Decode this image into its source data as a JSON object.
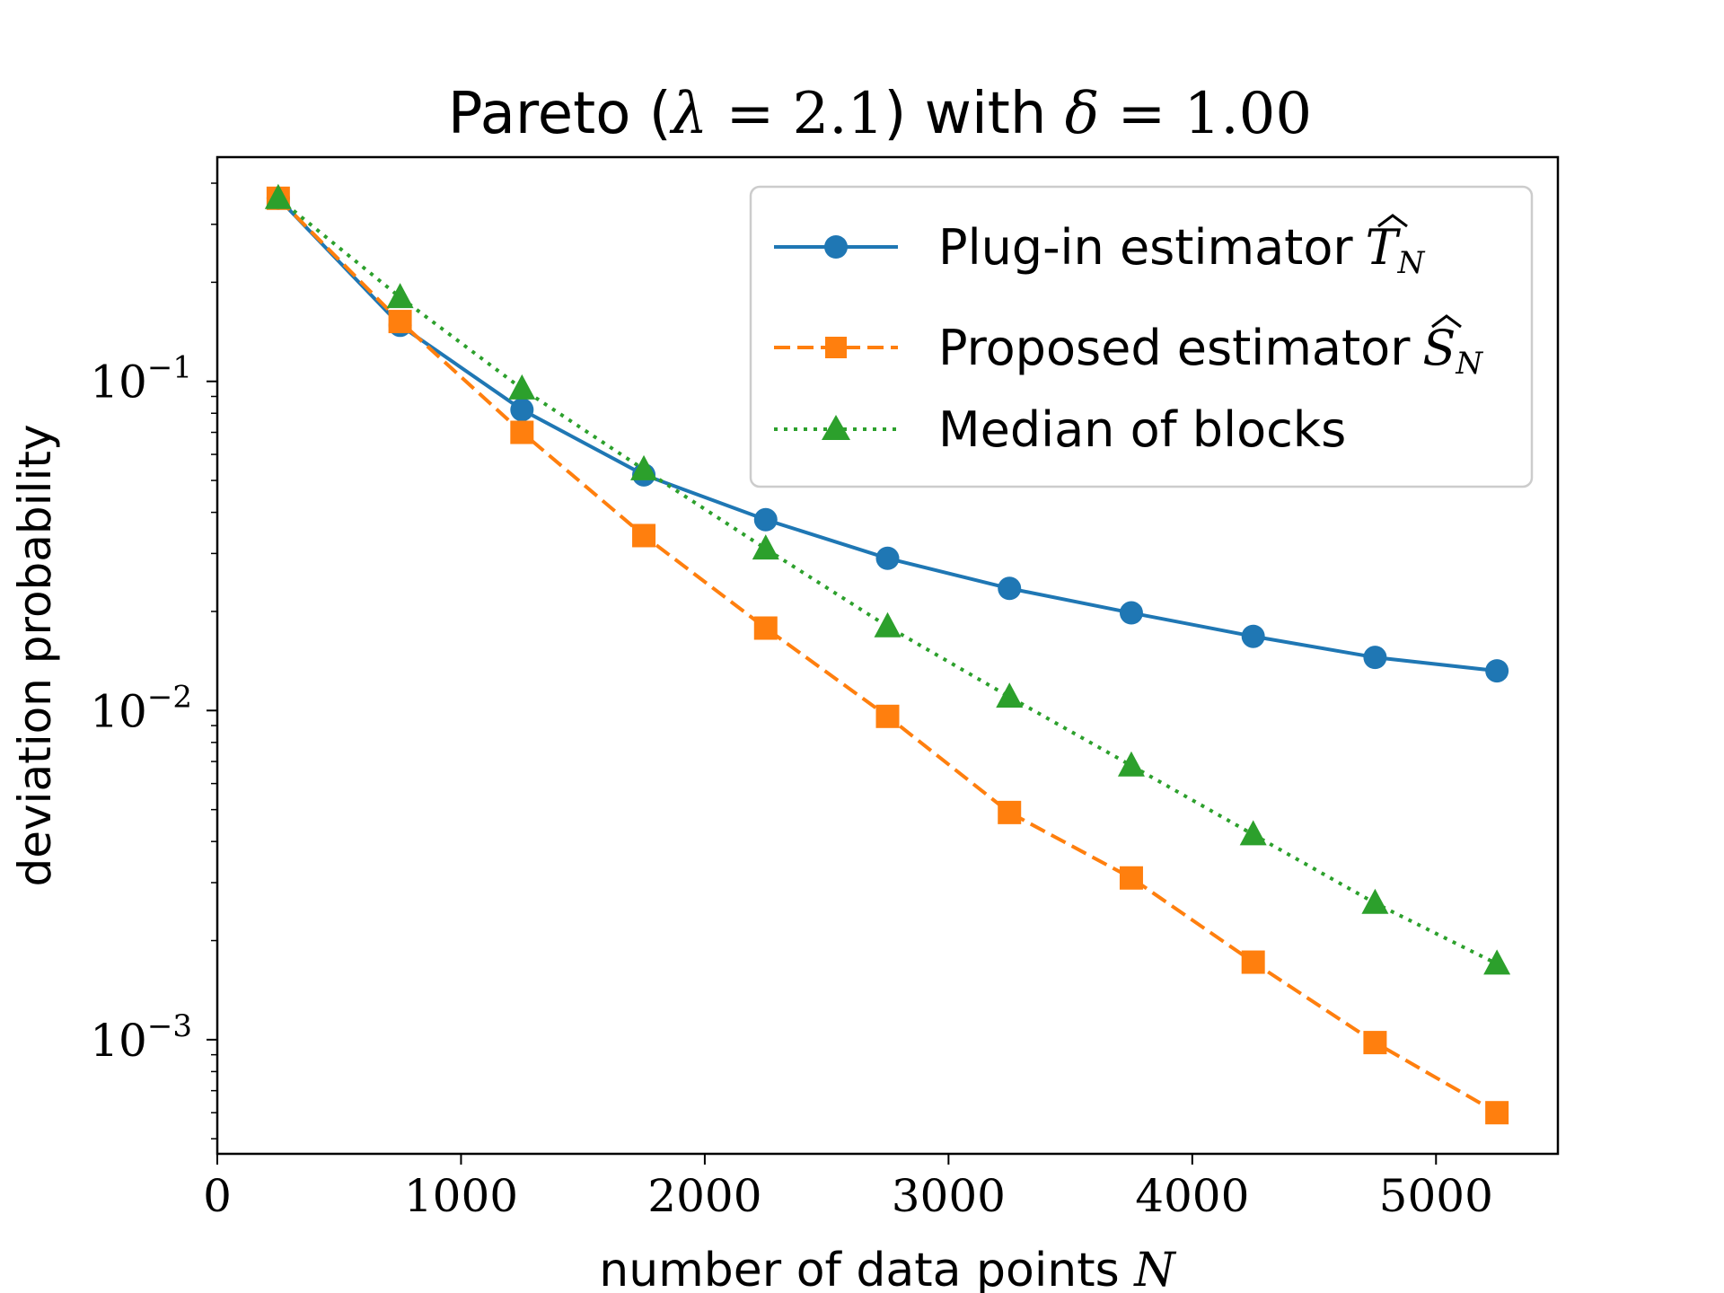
{
  "chart_data": {
    "type": "line",
    "title": {
      "prefix": "Pareto (",
      "lambda_sym": "λ",
      "eq1": " = 2.1",
      "close": ")",
      "mid": " with ",
      "delta_sym": "δ",
      "eq2": " = 1.00"
    },
    "xlabel": {
      "text": "number of data points ",
      "var": "N"
    },
    "ylabel": "deviation probability",
    "xlim": [
      0,
      5500
    ],
    "ylim": [
      0.00045,
      0.48
    ],
    "yscale": "log",
    "x_ticks": [
      0,
      1000,
      2000,
      3000,
      4000,
      5000
    ],
    "x_tick_labels": [
      "0",
      "1000",
      "2000",
      "3000",
      "4000",
      "5000"
    ],
    "y_major_ticks": [
      0.1,
      0.01,
      0.001
    ],
    "y_tick_labels": [
      {
        "base": "10",
        "exp": "−1"
      },
      {
        "base": "10",
        "exp": "−2"
      },
      {
        "base": "10",
        "exp": "−3"
      }
    ],
    "x": [
      250,
      750,
      1250,
      1750,
      2250,
      2750,
      3250,
      3750,
      4250,
      4750,
      5250
    ],
    "series": [
      {
        "name": "Plug-in estimator",
        "symbol": "T",
        "subscript": "N",
        "color": "#1f77b4",
        "line": "solid",
        "marker": "circle",
        "values": [
          0.36,
          0.148,
          0.082,
          0.052,
          0.038,
          0.029,
          0.0235,
          0.0198,
          0.0168,
          0.0145,
          0.0132
        ]
      },
      {
        "name": "Proposed estimator",
        "symbol": "S",
        "subscript": "N",
        "color": "#ff7f0e",
        "line": "dashed",
        "marker": "square",
        "values": [
          0.36,
          0.152,
          0.07,
          0.034,
          0.0178,
          0.0096,
          0.0049,
          0.0031,
          0.00172,
          0.00098,
          0.0006
        ]
      },
      {
        "name": "Median of blocks",
        "symbol": "",
        "subscript": "",
        "color": "#2ca02c",
        "line": "dotted",
        "marker": "triangle",
        "values": [
          0.36,
          0.18,
          0.095,
          0.054,
          0.031,
          0.018,
          0.011,
          0.0068,
          0.0042,
          0.0026,
          0.0017
        ]
      }
    ],
    "legend_position": "upper-right",
    "grid": false
  }
}
